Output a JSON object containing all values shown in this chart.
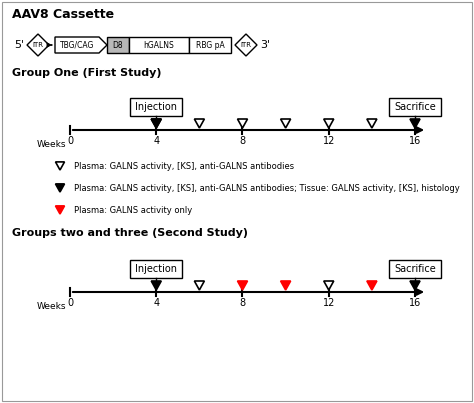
{
  "title_cassette": "AAV8 Cassette",
  "group1_title": "Group One (First Study)",
  "group2_title": "Groups two and three (Second Study)",
  "legend_items": [
    {
      "fill": "white",
      "edge": "black",
      "text": "Plasma: GALNS activity, [KS], anti-GALNS antibodies"
    },
    {
      "fill": "black",
      "edge": "black",
      "text": "Plasma: GALNS activity, [KS], anti-GALNS antibodies; Tissue: GALNS activity, [KS], histology"
    },
    {
      "fill": "red",
      "edge": "red",
      "text": "Plasma: GALNS activity only"
    }
  ],
  "group1_white_triangles": [
    4,
    6,
    8,
    10,
    12,
    14
  ],
  "group1_black_triangles_injection": [
    4
  ],
  "group1_black_triangles_sacrifice": [
    16
  ],
  "group2_white_triangles": [
    6,
    12
  ],
  "group2_red_triangles": [
    8,
    10,
    14
  ],
  "group2_black_triangles_injection": [
    4
  ],
  "group2_black_triangles_sacrifice": [
    16
  ],
  "week_ticks": [
    0,
    4,
    8,
    12,
    16
  ],
  "bg_color": "#ffffff"
}
